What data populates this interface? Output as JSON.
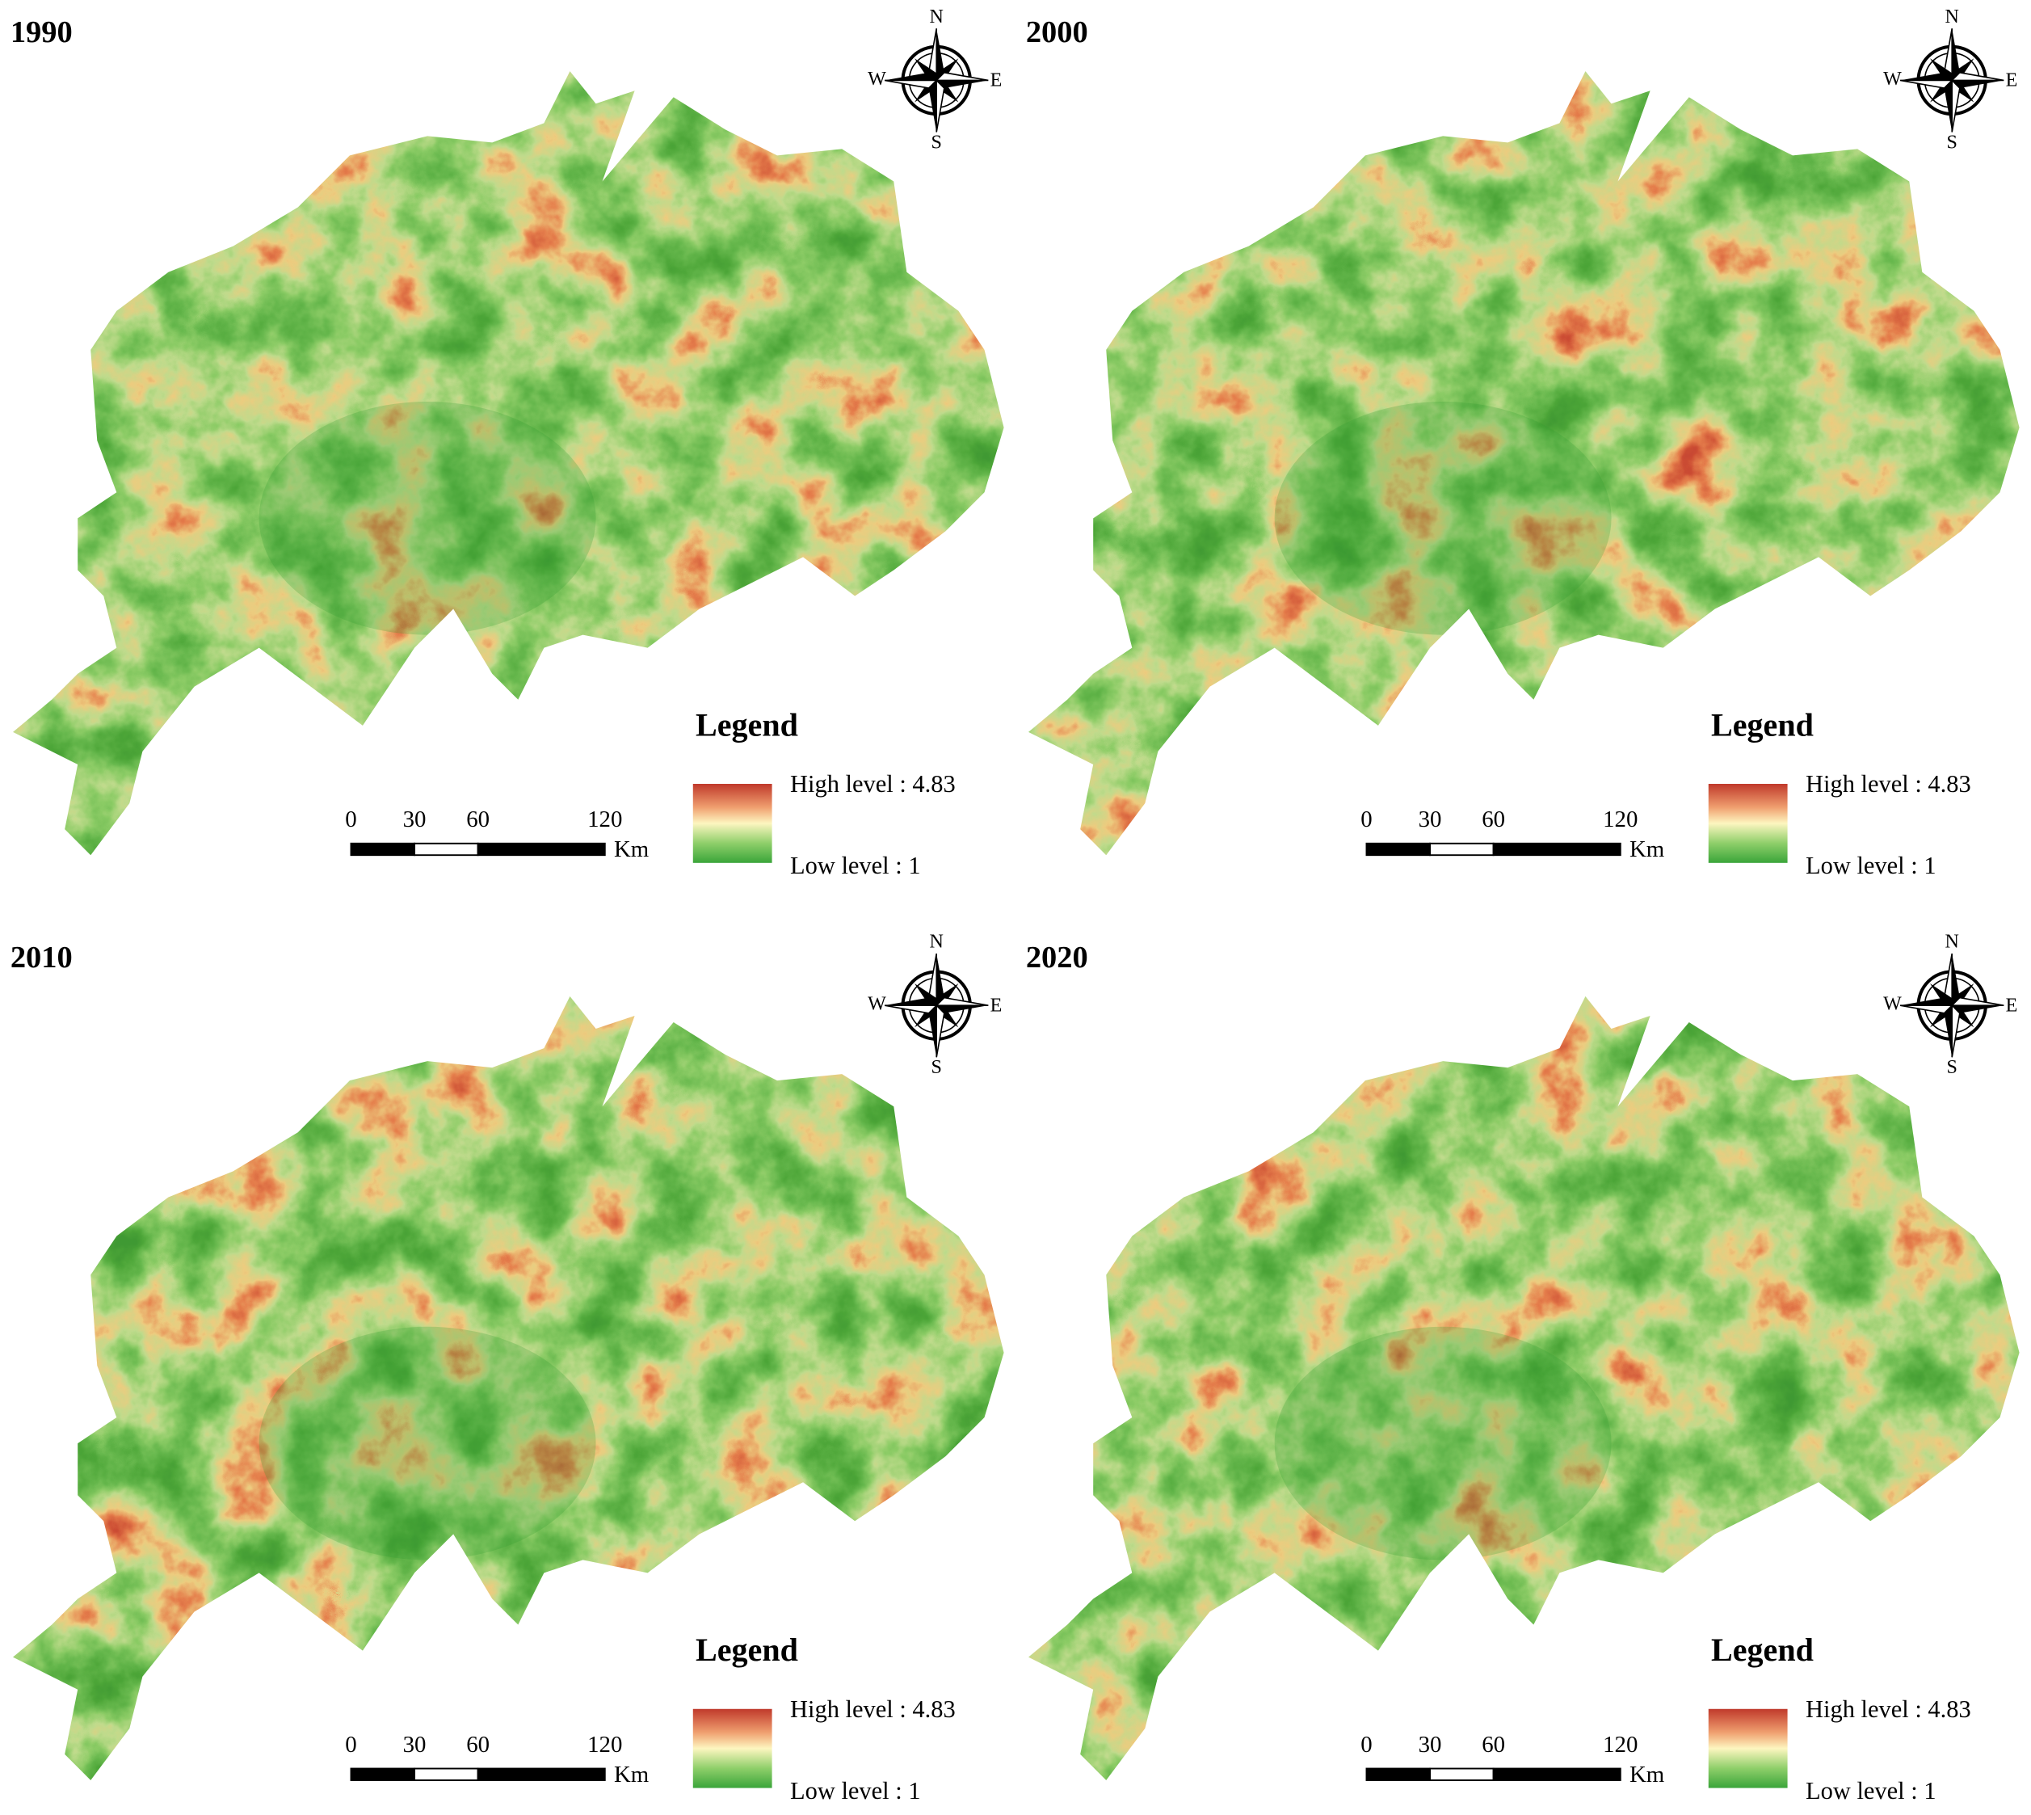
{
  "panels": [
    {
      "title": "1990",
      "compass": {
        "n": "N",
        "e": "E",
        "s": "S",
        "w": "W"
      },
      "legend": {
        "title": "Legend",
        "high": "High level : 4.83",
        "low": "Low level : 1"
      },
      "scale_bar": {
        "ticks": [
          0,
          30,
          60,
          120
        ],
        "unit": "Km"
      }
    },
    {
      "title": "2000",
      "compass": {
        "n": "N",
        "e": "E",
        "s": "S",
        "w": "W"
      },
      "legend": {
        "title": "Legend",
        "high": "High level : 4.83",
        "low": "Low level : 1"
      },
      "scale_bar": {
        "ticks": [
          0,
          30,
          60,
          120
        ],
        "unit": "Km"
      }
    },
    {
      "title": "2010",
      "compass": {
        "n": "N",
        "e": "E",
        "s": "S",
        "w": "W"
      },
      "legend": {
        "title": "Legend",
        "high": "High level : 4.83",
        "low": "Low level : 1"
      },
      "scale_bar": {
        "ticks": [
          0,
          30,
          60,
          120
        ],
        "unit": "Km"
      }
    },
    {
      "title": "2020",
      "compass": {
        "n": "N",
        "e": "E",
        "s": "S",
        "w": "W"
      },
      "legend": {
        "title": "Legend",
        "high": "High level : 4.83",
        "low": "Low level : 1"
      },
      "scale_bar": {
        "ticks": [
          0,
          30,
          60,
          120
        ],
        "unit": "Km"
      }
    }
  ]
}
